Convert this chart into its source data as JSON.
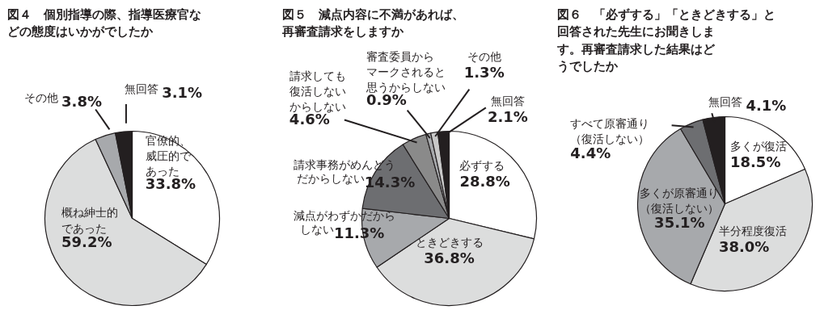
{
  "chart_data": [
    {
      "type": "pie",
      "title": "図４　個別指導の際、指導医療官などの態度はいかがでしたか",
      "categories": [
        "官僚的、威圧的であった",
        "概ね紳士的であった",
        "その他",
        "無回答"
      ],
      "values": [
        33.8,
        59.2,
        3.8,
        3.1
      ],
      "value_labels": [
        "33.8%",
        "59.2%",
        "3.8%",
        "3.1%"
      ],
      "colors": [
        "#ffffff",
        "#dcdddd",
        "#a7a9ac",
        "#231f20"
      ]
    },
    {
      "type": "pie",
      "title": "図５　減点内容に不満があれば、再審査請求をしますか",
      "categories": [
        "必ずする",
        "ときどきする",
        "減点がわずかだからしない",
        "請求事務がめんどうだからしない",
        "請求しても復活しないからしない",
        "審査委員からマークされると思うからしない",
        "その他",
        "無回答"
      ],
      "values": [
        28.8,
        36.8,
        11.3,
        14.3,
        4.6,
        0.9,
        1.3,
        2.1
      ],
      "value_labels": [
        "28.8%",
        "36.8%",
        "11.3%",
        "14.3%",
        "4.6%",
        "0.9%",
        "1.3%",
        "2.1%"
      ],
      "colors": [
        "#ffffff",
        "#dcdddd",
        "#a7a9ac",
        "#6d6e71",
        "#8a8a8a",
        "#a7a9ac",
        "#c8c8c8",
        "#231f20"
      ]
    },
    {
      "type": "pie",
      "title": "図６　「必ずする」「ときどきする」と回答された先生にお聞きします。再審査請求した結果はどうでしたか",
      "categories": [
        "多くが復活",
        "半分程度復活",
        "多くが原審通り（復活しない）",
        "すべて原審通り（復活しない）",
        "無回答"
      ],
      "values": [
        18.5,
        38.0,
        35.1,
        4.4,
        4.1
      ],
      "value_labels": [
        "18.5%",
        "38.0%",
        "35.1%",
        "4.4%",
        "4.1%"
      ],
      "colors": [
        "#ffffff",
        "#dcdddd",
        "#a7a9ac",
        "#6d6e71",
        "#231f20"
      ]
    }
  ]
}
